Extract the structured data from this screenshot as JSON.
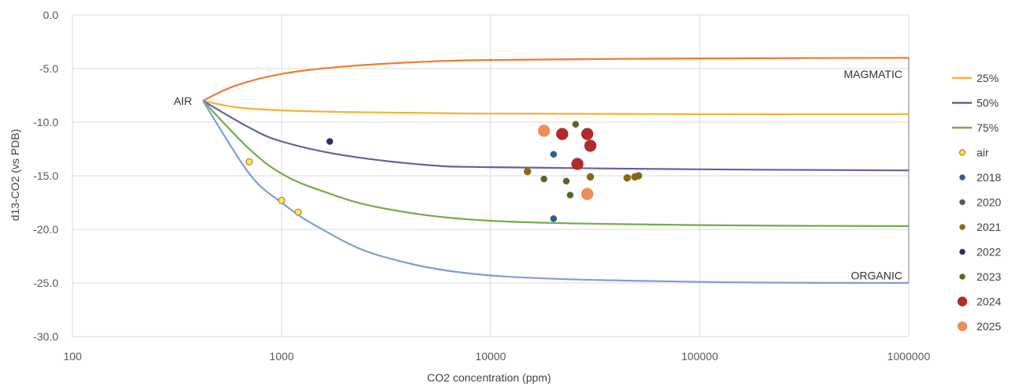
{
  "chart_data": {
    "type": "scatter",
    "xlabel": "CO2 concentration (ppm)",
    "ylabel": "d13-CO2 (vs PDB)",
    "x_scale": "log",
    "xlim": [
      100,
      1000000
    ],
    "ylim": [
      -30,
      0
    ],
    "x_ticks": [
      100,
      1000,
      10000,
      100000,
      1000000
    ],
    "x_tick_labels": [
      "100",
      "1000",
      "10000",
      "100000",
      "1000000"
    ],
    "y_ticks": [
      0,
      -5,
      -10,
      -15,
      -20,
      -25,
      -30
    ],
    "y_tick_labels": [
      "0.0",
      "-5.0",
      "-10.0",
      "-15.0",
      "-20.0",
      "-25.0",
      "-30.0"
    ],
    "grid": true,
    "legend_position": "right",
    "annotations": [
      {
        "text": "AIR",
        "x": 400,
        "y": -8
      },
      {
        "text": "MAGMATIC",
        "x": 1000000,
        "y": -5.5
      },
      {
        "text": "ORGANIC",
        "x": 1000000,
        "y": -24.3
      }
    ],
    "series": [
      {
        "name": "",
        "type": "line",
        "color": "#ed7d31",
        "points": [
          [
            420,
            -8
          ],
          [
            600,
            -6.6
          ],
          [
            1000,
            -5.5
          ],
          [
            2000,
            -4.8
          ],
          [
            5000,
            -4.35
          ],
          [
            10000,
            -4.2
          ],
          [
            100000,
            -4.05
          ],
          [
            1000000,
            -4.0
          ]
        ]
      },
      {
        "name": "25%",
        "type": "line",
        "color": "#f4b233",
        "points": [
          [
            420,
            -8
          ],
          [
            600,
            -8.6
          ],
          [
            1000,
            -8.9
          ],
          [
            2000,
            -9.05
          ],
          [
            5000,
            -9.15
          ],
          [
            10000,
            -9.2
          ],
          [
            100000,
            -9.25
          ],
          [
            1000000,
            -9.25
          ]
        ]
      },
      {
        "name": "50%",
        "type": "line",
        "color": "#6162a8",
        "points": [
          [
            420,
            -8
          ],
          [
            700,
            -10.5
          ],
          [
            1000,
            -11.8
          ],
          [
            2000,
            -13.1
          ],
          [
            5000,
            -14.0
          ],
          [
            10000,
            -14.2
          ],
          [
            100000,
            -14.4
          ],
          [
            1000000,
            -14.5
          ]
        ]
      },
      {
        "name": "75%",
        "type": "line",
        "color": "#70ad47",
        "points": [
          [
            420,
            -8
          ],
          [
            700,
            -12.5
          ],
          [
            1000,
            -14.8
          ],
          [
            1500,
            -16.3
          ],
          [
            3000,
            -18.0
          ],
          [
            10000,
            -19.2
          ],
          [
            100000,
            -19.6
          ],
          [
            1000000,
            -19.7
          ]
        ]
      },
      {
        "name": "",
        "type": "line",
        "color": "#7f9ed4",
        "points": [
          [
            420,
            -8
          ],
          [
            700,
            -14.8
          ],
          [
            1000,
            -17.5
          ],
          [
            1500,
            -19.8
          ],
          [
            3000,
            -22.5
          ],
          [
            10000,
            -24.3
          ],
          [
            100000,
            -24.9
          ],
          [
            1000000,
            -25.0
          ]
        ]
      },
      {
        "name": "air",
        "type": "scatter",
        "color": "#fbe06f",
        "stroke": "#b8860b",
        "size": 4,
        "points": [
          [
            700,
            -13.7
          ],
          [
            1000,
            -17.3
          ],
          [
            1200,
            -18.4
          ]
        ]
      },
      {
        "name": "2018",
        "type": "scatter",
        "color": "#2e5f8a",
        "size": 4,
        "points": [
          [
            20000,
            -13.0
          ],
          [
            20000,
            -19.0
          ]
        ]
      },
      {
        "name": "2020",
        "type": "scatter",
        "color": "#5a5a5a",
        "size": 4,
        "points": [
          [
            29000,
            -16.5
          ]
        ]
      },
      {
        "name": "2021",
        "type": "scatter",
        "color": "#8b6914",
        "size": 4.5,
        "points": [
          [
            15000,
            -14.6
          ],
          [
            30000,
            -15.1
          ],
          [
            45000,
            -15.2
          ],
          [
            49000,
            -15.1
          ],
          [
            51000,
            -15.0
          ]
        ]
      },
      {
        "name": "2022",
        "type": "scatter",
        "color": "#2d2d6b",
        "size": 4,
        "points": [
          [
            1700,
            -11.8
          ]
        ]
      },
      {
        "name": "2023",
        "type": "scatter",
        "color": "#4e6b25",
        "size": 4,
        "points": [
          [
            18000,
            -15.3
          ],
          [
            23000,
            -15.5
          ],
          [
            24000,
            -16.8
          ],
          [
            25500,
            -10.2
          ]
        ]
      },
      {
        "name": "2024",
        "type": "scatter",
        "color": "#b22a2a",
        "size": 7.5,
        "points": [
          [
            22000,
            -11.1
          ],
          [
            26000,
            -13.9
          ],
          [
            29000,
            -11.1
          ],
          [
            30000,
            -12.2
          ]
        ]
      },
      {
        "name": "2025",
        "type": "scatter",
        "color": "#f08c5a",
        "size": 7.5,
        "points": [
          [
            18000,
            -10.8
          ],
          [
            29000,
            -16.7
          ]
        ]
      }
    ]
  }
}
